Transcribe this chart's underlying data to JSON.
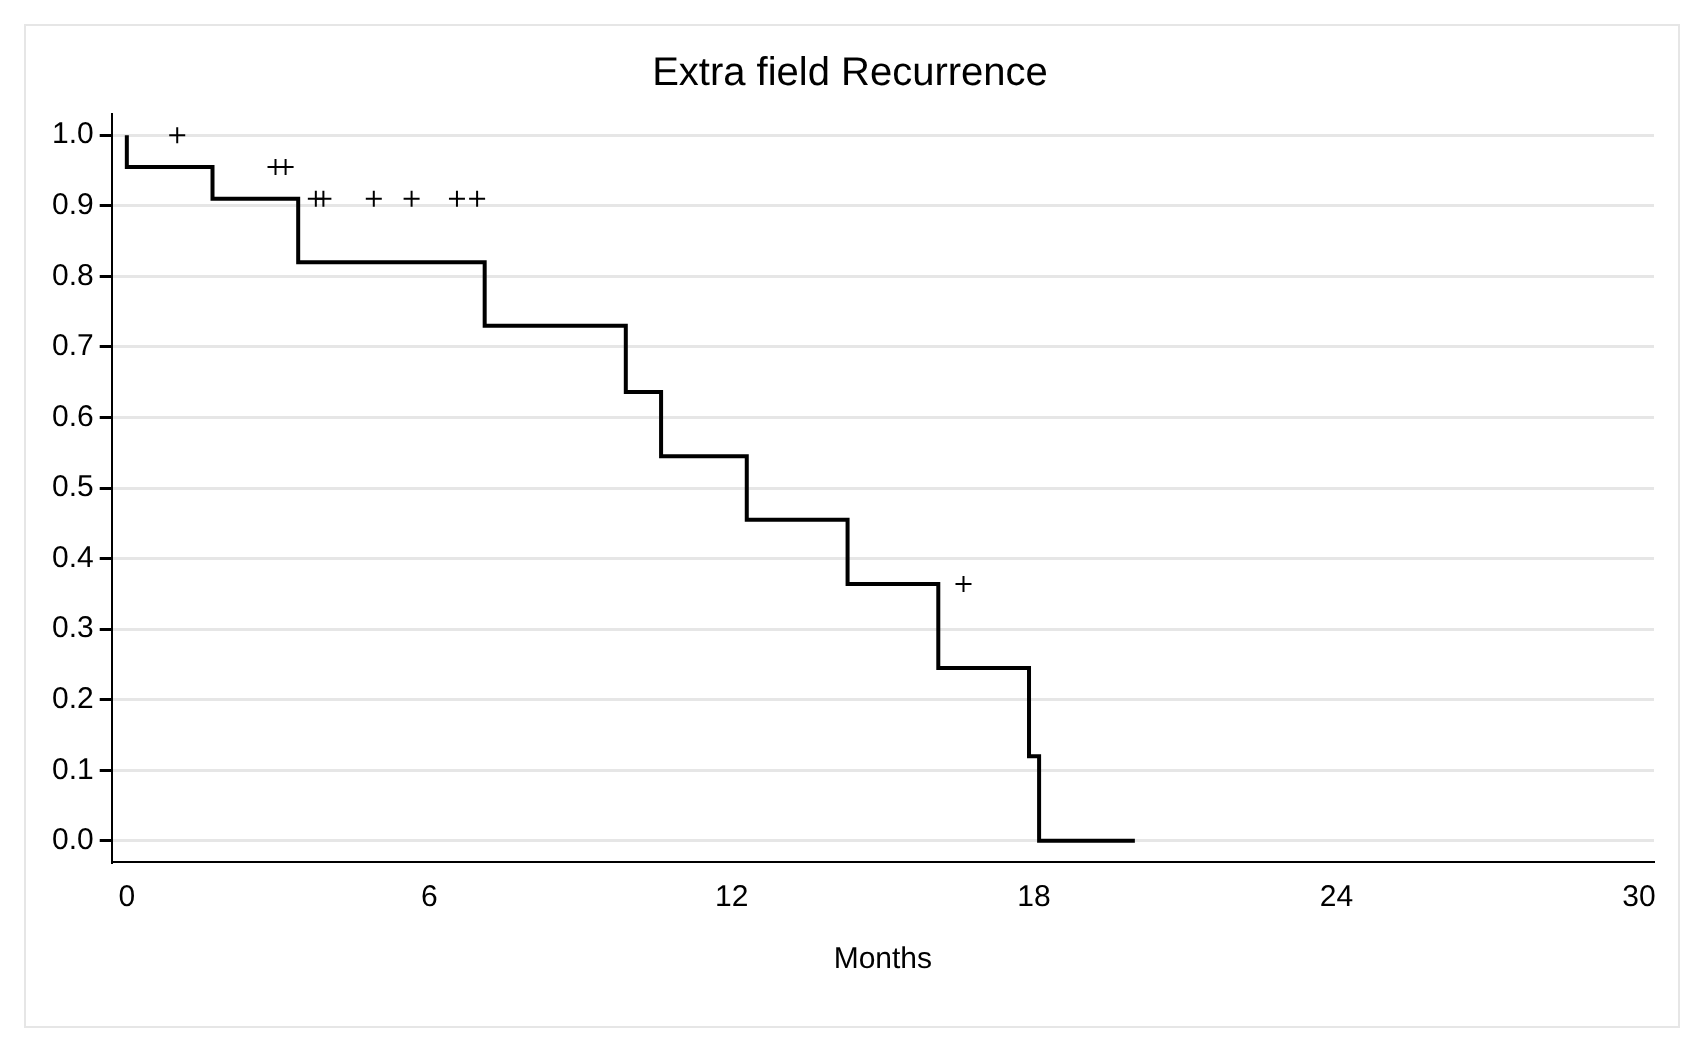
{
  "chart_data": {
    "type": "step",
    "title": "Extra field Recurrence",
    "xlabel": "Months",
    "series": [
      {
        "type": "step",
        "color": "#000000",
        "x": [
          0,
          1.7,
          3.4,
          7.1,
          9.9,
          10.6,
          12.3,
          14.3,
          16.1,
          17.9,
          18.1,
          20.0
        ],
        "values": [
          1,
          0.955,
          0.91,
          0.82,
          0.73,
          0.636,
          0.545,
          0.455,
          0.364,
          0.245,
          0.12,
          0
        ]
      },
      {
        "type": "scatter",
        "color": "#000000",
        "marker": "cross",
        "x": [
          1.0,
          2.95,
          3.15,
          3.75,
          3.9,
          4.9,
          5.65,
          6.55,
          6.95,
          16.6
        ],
        "values": [
          1,
          0.955,
          0.955,
          0.91,
          0.91,
          0.91,
          0.91,
          0.91,
          0.91,
          0.364
        ]
      }
    ],
    "xlim": [
      -0.3,
      30.3
    ],
    "xticks": [
      0,
      6,
      12,
      18,
      24,
      30
    ],
    "ylim": [
      -0.03,
      1.03
    ],
    "yticks": [
      {
        "value": 0,
        "label": "0.0"
      },
      {
        "value": 0.1,
        "label": "0.1"
      },
      {
        "value": 0.2,
        "label": "0.2"
      },
      {
        "value": 0.3,
        "label": "0.3"
      },
      {
        "value": 0.4,
        "label": "0.4"
      },
      {
        "value": 0.5,
        "label": "0.5"
      },
      {
        "value": 0.6,
        "label": "0.6"
      },
      {
        "value": 0.7,
        "label": "0.7"
      },
      {
        "value": 0.8,
        "label": "0.8"
      },
      {
        "value": 0.9,
        "label": "0.9"
      },
      {
        "value": 1,
        "label": "1.0"
      }
    ],
    "grid": "y",
    "legend": false
  }
}
